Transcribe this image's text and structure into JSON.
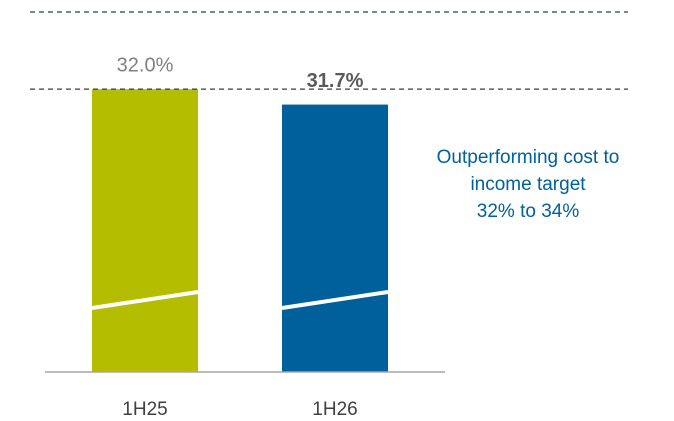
{
  "chart_data": {
    "type": "bar",
    "categories": [
      "1H25",
      "1H26"
    ],
    "values": [
      32.0,
      31.7
    ],
    "value_labels": [
      "32.0%",
      "31.7%"
    ],
    "colors": [
      "#b5bd00",
      "#00609c"
    ],
    "ylim": [
      26.5,
      33.5
    ],
    "target_line": 32,
    "annotation": [
      "Outperforming cost to",
      "income target",
      "32% to 34%"
    ]
  }
}
